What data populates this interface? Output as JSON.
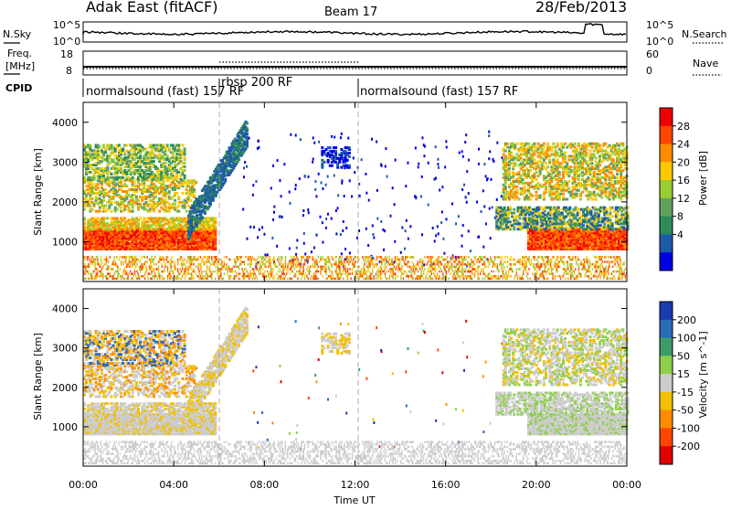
{
  "header": {
    "station": "Adak East (fitACF)",
    "beam": "Beam 17",
    "date": "28/Feb/2013"
  },
  "noise_panel": {
    "left_label": "N.Sky",
    "right_label": "N.Search",
    "left_ticks": [
      "10^5",
      "10^0"
    ],
    "right_ticks": [
      "10^5",
      "10^0"
    ]
  },
  "freq_panel": {
    "left_label_top": "Freq.",
    "left_label_unit": "[MHz]",
    "right_label": "Nave",
    "left_ticks": [
      "18",
      "8"
    ],
    "right_ticks": [
      "60",
      "0"
    ]
  },
  "cpid_panel": {
    "label": "CPID",
    "segments": [
      {
        "name": "normalsound (fast) 157 RF",
        "start_hour": 0,
        "end_hour": 6.0
      },
      {
        "name": "rbsp 200 RF",
        "start_hour": 6.0,
        "end_hour": 12.0
      },
      {
        "name": "normalsound (fast) 157 RF",
        "start_hour": 12.0,
        "end_hour": 24.0
      }
    ]
  },
  "x_axis": {
    "label": "Time UT",
    "ticks": [
      "00:00",
      "04:00",
      "08:00",
      "12:00",
      "16:00",
      "20:00",
      "00:00"
    ]
  },
  "chart_data": [
    {
      "type": "heatmap",
      "name": "power",
      "xlabel": "Time UT",
      "ylabel": "Slant Range [km]",
      "ylim": [
        0,
        4500
      ],
      "xlim": [
        0,
        24
      ],
      "y_ticks": [
        1000,
        2000,
        3000,
        4000
      ],
      "colorbar": {
        "label": "Power [dB]",
        "ticks": [
          "28",
          "24",
          "20",
          "16",
          "12",
          "8",
          "4"
        ],
        "colors": [
          "#f00000",
          "#ff4500",
          "#ff8c00",
          "#ffc800",
          "#9acd32",
          "#5fa05f",
          "#2e8b57",
          "#1e5aa8",
          "#0000e0"
        ]
      }
    },
    {
      "type": "heatmap",
      "name": "velocity",
      "xlabel": "Time UT",
      "ylabel": "Slant Range [km]",
      "ylim": [
        0,
        4500
      ],
      "xlim": [
        0,
        24
      ],
      "y_ticks": [
        1000,
        2000,
        3000,
        4000
      ],
      "colorbar": {
        "label": "Velocity [m s^-1]",
        "ticks": [
          "200",
          "100",
          "50",
          "15",
          "-15",
          "-50",
          "-100",
          "-200"
        ],
        "colors": [
          "#1a3ab0",
          "#2a6ab8",
          "#3f9a6a",
          "#8ed04a",
          "#cccccc",
          "#f2c000",
          "#ff8c00",
          "#ff4500",
          "#e00000"
        ]
      }
    }
  ]
}
